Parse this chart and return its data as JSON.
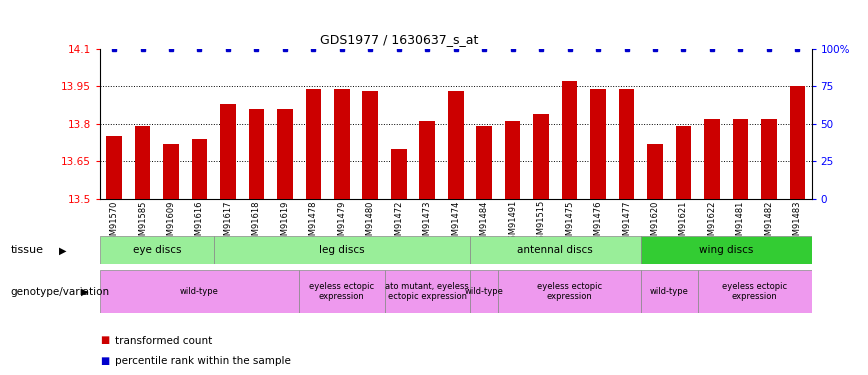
{
  "title": "GDS1977 / 1630637_s_at",
  "samples": [
    "GSM91570",
    "GSM91585",
    "GSM91609",
    "GSM91616",
    "GSM91617",
    "GSM91618",
    "GSM91619",
    "GSM91478",
    "GSM91479",
    "GSM91480",
    "GSM91472",
    "GSM91473",
    "GSM91474",
    "GSM91484",
    "GSM91491",
    "GSM91515",
    "GSM91475",
    "GSM91476",
    "GSM91477",
    "GSM91620",
    "GSM91621",
    "GSM91622",
    "GSM91481",
    "GSM91482",
    "GSM91483"
  ],
  "bar_values": [
    13.75,
    13.79,
    13.72,
    13.74,
    13.88,
    13.86,
    13.86,
    13.94,
    13.94,
    13.93,
    13.7,
    13.81,
    13.93,
    13.79,
    13.81,
    13.84,
    13.97,
    13.94,
    13.94,
    13.72,
    13.79,
    13.82,
    13.82,
    13.82,
    13.95
  ],
  "ymin": 13.5,
  "ymax": 14.1,
  "yticks": [
    13.5,
    13.65,
    13.8,
    13.95,
    14.1
  ],
  "yright_ticks": [
    0,
    25,
    50,
    75,
    100
  ],
  "yright_labels": [
    "0",
    "25",
    "50",
    "75",
    "100%"
  ],
  "bar_color": "#cc0000",
  "dot_color": "#0000cc",
  "grid_lines": [
    13.65,
    13.8,
    13.95
  ],
  "tissue_row": [
    {
      "label": "eye discs",
      "start": 0,
      "end": 4,
      "color": "#99ee99"
    },
    {
      "label": "leg discs",
      "start": 4,
      "end": 13,
      "color": "#99ee99"
    },
    {
      "label": "antennal discs",
      "start": 13,
      "end": 19,
      "color": "#99ee99"
    },
    {
      "label": "wing discs",
      "start": 19,
      "end": 25,
      "color": "#33cc33"
    }
  ],
  "genotype_row": [
    {
      "label": "wild-type",
      "start": 0,
      "end": 7
    },
    {
      "label": "eyeless ectopic\nexpression",
      "start": 7,
      "end": 10
    },
    {
      "label": "ato mutant, eyeless\nectopic expression",
      "start": 10,
      "end": 13
    },
    {
      "label": "wild-type",
      "start": 13,
      "end": 14
    },
    {
      "label": "eyeless ectopic\nexpression",
      "start": 14,
      "end": 19
    },
    {
      "label": "wild-type",
      "start": 19,
      "end": 21
    },
    {
      "label": "eyeless ectopic\nexpression",
      "start": 21,
      "end": 25
    }
  ],
  "genotype_color": "#ee99ee",
  "legend_items": [
    {
      "label": "transformed count",
      "color": "#cc0000"
    },
    {
      "label": "percentile rank within the sample",
      "color": "#0000cc"
    }
  ]
}
